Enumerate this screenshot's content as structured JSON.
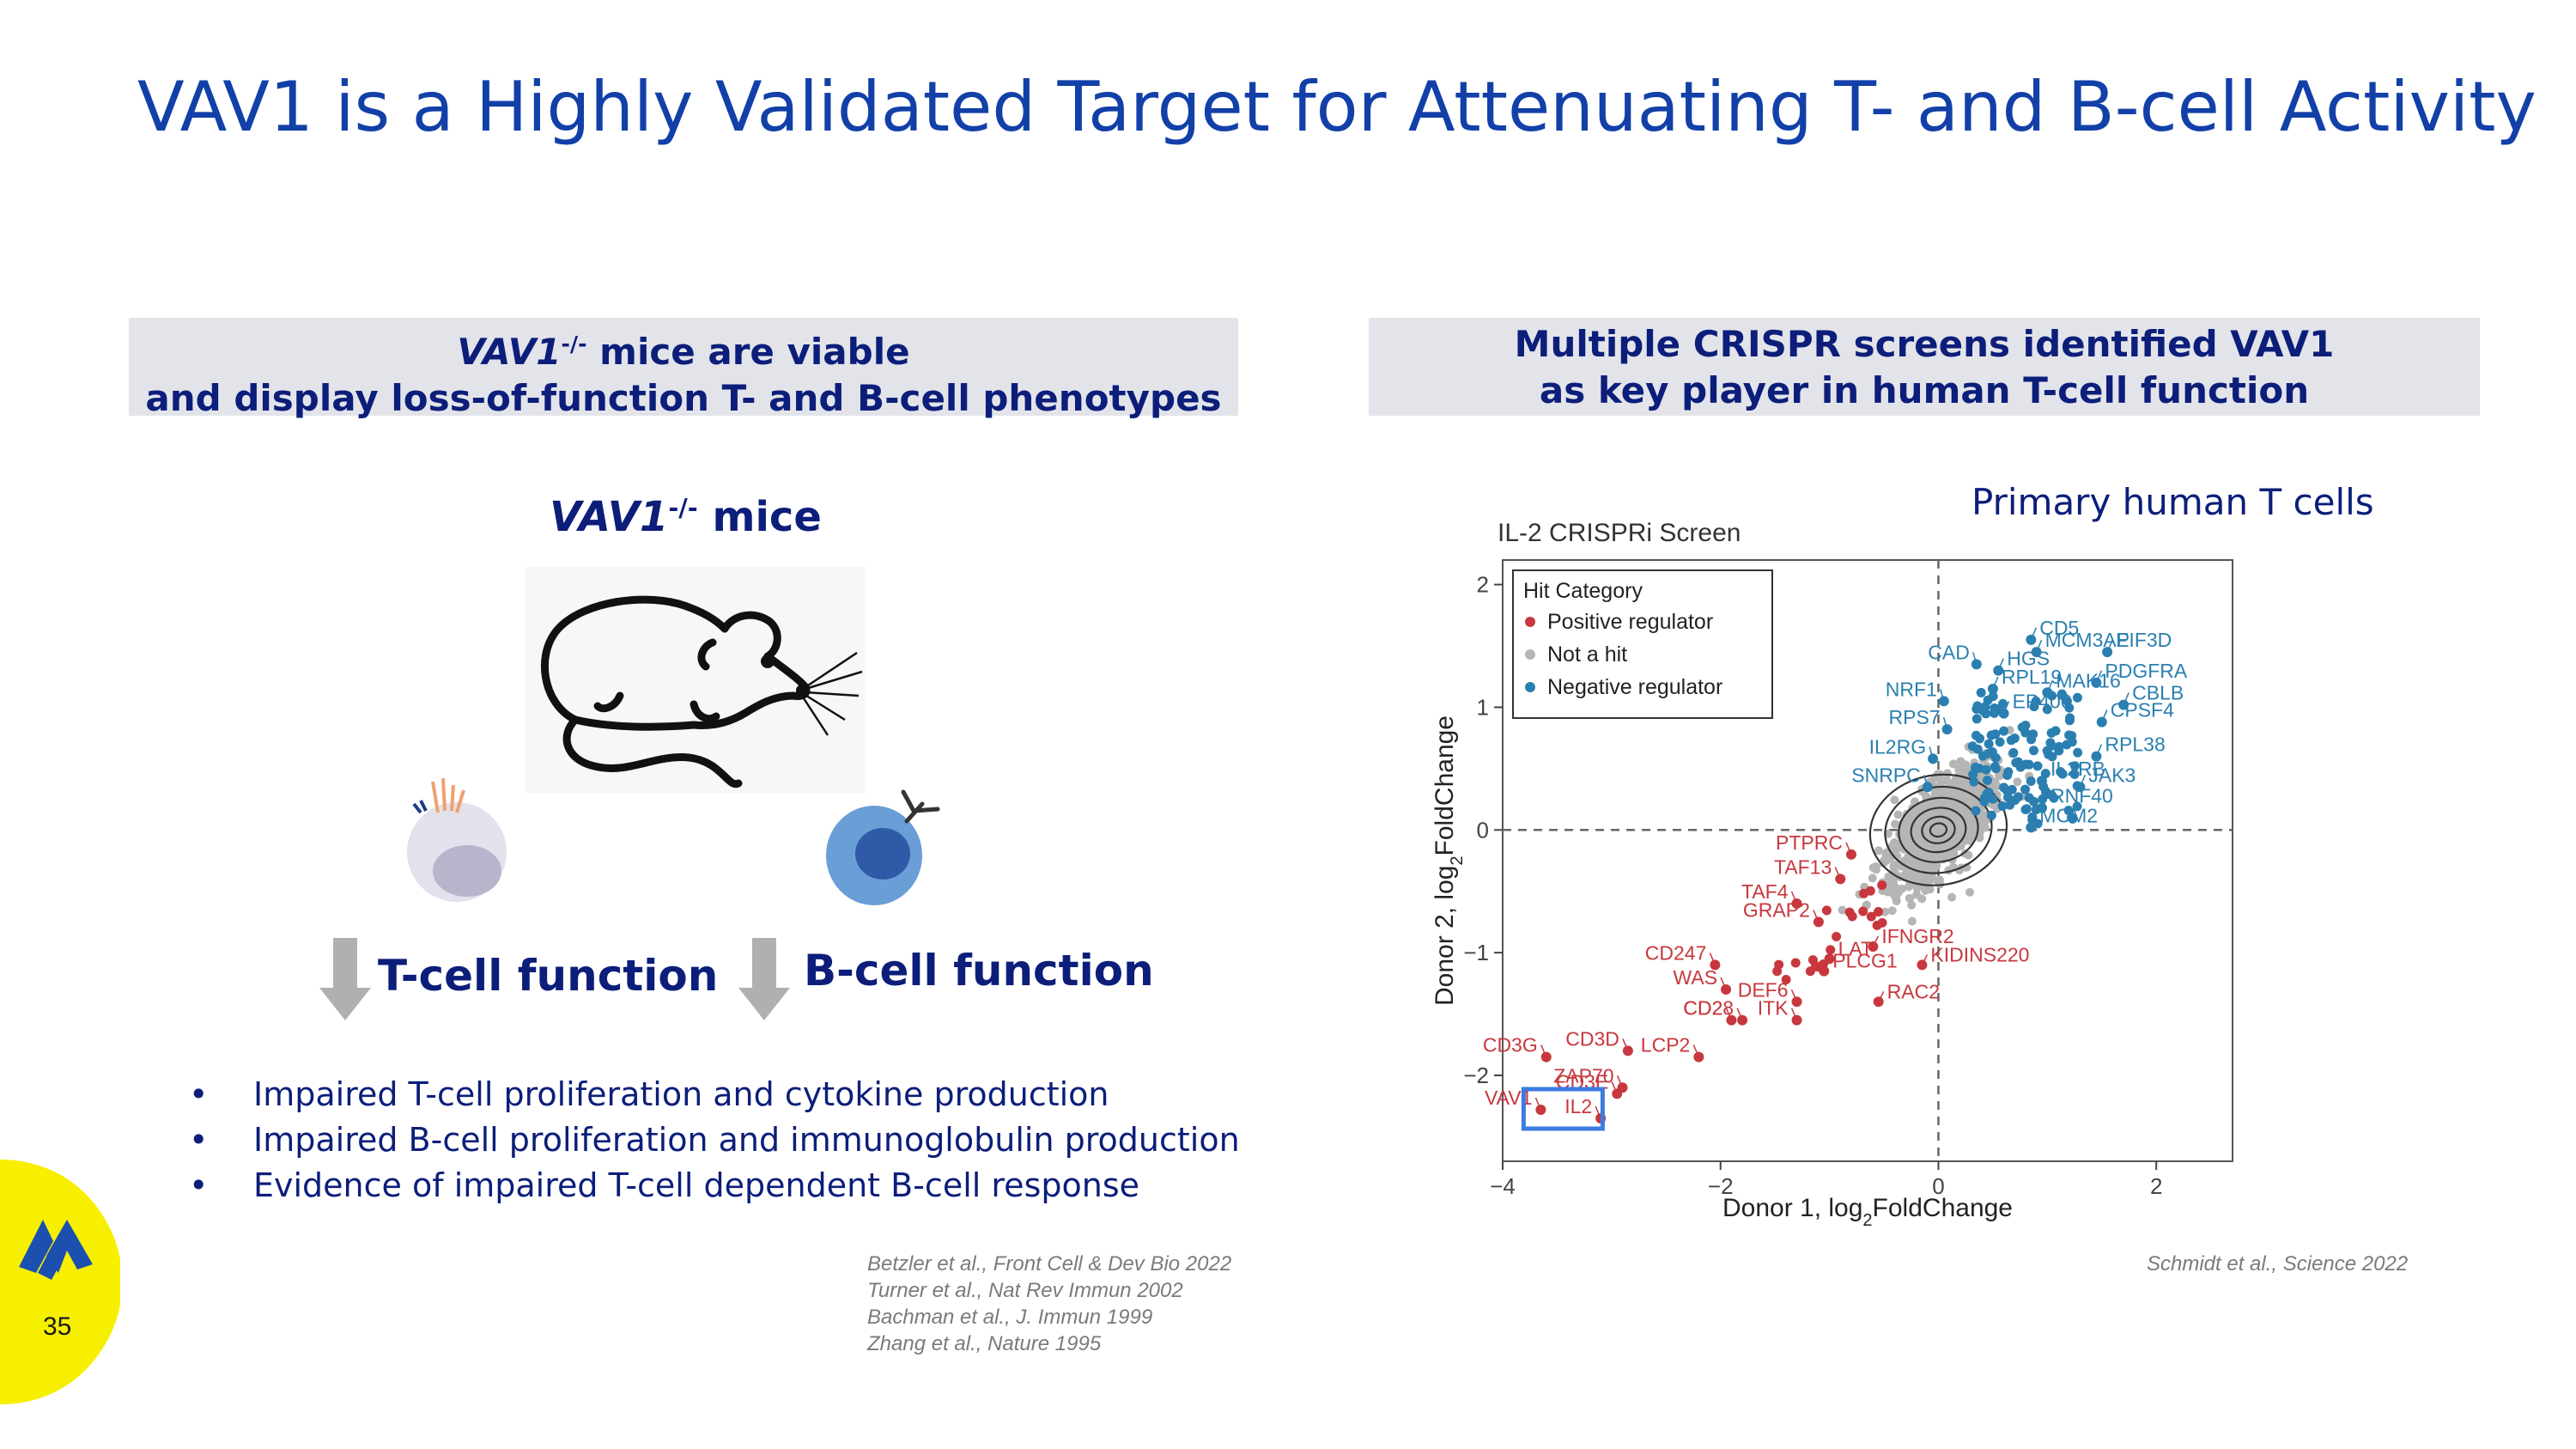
{
  "slide": {
    "title": "VAV1 is a Highly Validated Target for Attenuating T- and B-cell Activity",
    "page_number": "35",
    "colors": {
      "brand_blue": "#1240a8",
      "navy": "#0c1e7a",
      "band_gray": "#e2e4ea",
      "logo_yellow": "#f7ef00"
    }
  },
  "left": {
    "header_gene": "VAV1",
    "header_sup": "-/-",
    "header_line1_rest": " mice are viable",
    "header_line2": "and display loss-of-function T- and B-cell phenotypes",
    "mice_gene": "VAV1",
    "mice_sup": "-/-",
    "mice_rest": " mice",
    "t_cell_label": "T-cell function",
    "b_cell_label": "B-cell function",
    "bullets": [
      "Impaired T-cell proliferation and cytokine production",
      "Impaired B-cell proliferation and immunoglobulin production",
      "Evidence of impaired T-cell dependent B-cell response"
    ],
    "references": [
      "Betzler et al., Front Cell & Dev Bio 2022",
      "Turner et al., Nat Rev Immun 2002",
      "Bachman et al., J. Immun 1999",
      "Zhang et al., Nature 1995"
    ],
    "icons": [
      "mouse-icon",
      "t-cell-icon",
      "b-cell-icon",
      "down-arrow-icon"
    ]
  },
  "right": {
    "header_line1": "Multiple CRISPR screens identified VAV1",
    "header_line2": "as key player in human T-cell function",
    "subtitle": "Primary human T cells",
    "reference": "Schmidt et al., Science 2022"
  },
  "chart_data": {
    "type": "scatter",
    "title": "IL-2 CRISPRi Screen",
    "xlabel": "Donor 1, log2FoldChange",
    "ylabel": "Donor 2, log2FoldChange",
    "xlim": [
      -4,
      2.7
    ],
    "ylim": [
      -2.7,
      2.2
    ],
    "xticks": [
      -4,
      -2,
      0,
      2
    ],
    "xtick_labels": [
      "−4",
      "−2",
      "0",
      "2"
    ],
    "yticks": [
      -2,
      -1,
      0,
      1,
      2
    ],
    "ytick_labels": [
      "−2",
      "−1",
      "0",
      "1",
      "2"
    ],
    "grid": false,
    "reference_lines": {
      "x": 0,
      "y": 0,
      "style": "dashed"
    },
    "legend": {
      "title": "Hit Category",
      "position": "top-left",
      "entries": [
        {
          "name": "Positive regulator",
          "color": "#c8373d"
        },
        {
          "name": "Not a hit",
          "color": "#b5b5b5"
        },
        {
          "name": "Negative regulator",
          "color": "#2a7fb0"
        }
      ]
    },
    "series": [
      {
        "name": "Negative regulator",
        "color": "#2a7fb0",
        "points": [
          {
            "label": "CD5",
            "x": 0.85,
            "y": 1.55
          },
          {
            "label": "MCM3AP",
            "x": 0.9,
            "y": 1.45
          },
          {
            "label": "EIF3D",
            "x": 1.55,
            "y": 1.45
          },
          {
            "label": "CAD",
            "x": 0.35,
            "y": 1.35
          },
          {
            "label": "HGS",
            "x": 0.55,
            "y": 1.3
          },
          {
            "label": "PDGFRA",
            "x": 1.45,
            "y": 1.2
          },
          {
            "label": "RPL19",
            "x": 0.5,
            "y": 1.15
          },
          {
            "label": "MAK16",
            "x": 1.0,
            "y": 1.12
          },
          {
            "label": "NRF1",
            "x": 0.05,
            "y": 1.05
          },
          {
            "label": "CBLB",
            "x": 1.7,
            "y": 1.02
          },
          {
            "label": "EP400",
            "x": 0.6,
            "y": 0.95
          },
          {
            "label": "CPSF4",
            "x": 1.5,
            "y": 0.88
          },
          {
            "label": "RPS7",
            "x": 0.08,
            "y": 0.82
          },
          {
            "label": "RPL38",
            "x": 1.45,
            "y": 0.6
          },
          {
            "label": "IL2RG",
            "x": -0.05,
            "y": 0.58
          },
          {
            "label": "IL2RB",
            "x": 0.95,
            "y": 0.4
          },
          {
            "label": "JAK3",
            "x": 1.3,
            "y": 0.35
          },
          {
            "label": "SNRPC",
            "x": -0.1,
            "y": 0.35
          },
          {
            "label": "RNF40",
            "x": 0.95,
            "y": 0.18
          },
          {
            "label": "MCM2",
            "x": 0.85,
            "y": 0.02
          }
        ]
      },
      {
        "name": "Positive regulator",
        "color": "#c8373d",
        "points": [
          {
            "label": "PTPRC",
            "x": -0.8,
            "y": -0.2
          },
          {
            "label": "TAF13",
            "x": -0.9,
            "y": -0.4
          },
          {
            "label": "TAF4",
            "x": -1.3,
            "y": -0.6
          },
          {
            "label": "GRAP2",
            "x": -1.1,
            "y": -0.75
          },
          {
            "label": "IFNGR2",
            "x": -0.6,
            "y": -0.95
          },
          {
            "label": "LAT",
            "x": -1.0,
            "y": -1.05
          },
          {
            "label": "CD247",
            "x": -2.05,
            "y": -1.1
          },
          {
            "label": "PLCG1",
            "x": -1.05,
            "y": -1.15
          },
          {
            "label": "KIDINS220",
            "x": -0.15,
            "y": -1.1
          },
          {
            "label": "WAS",
            "x": -1.95,
            "y": -1.3
          },
          {
            "label": "DEF6",
            "x": -1.3,
            "y": -1.4
          },
          {
            "label": "RAC2",
            "x": -0.55,
            "y": -1.4
          },
          {
            "label": "CD2",
            "x": -1.9,
            "y": -1.55
          },
          {
            "label": "CD28",
            "x": -1.8,
            "y": -1.55
          },
          {
            "label": "ITK",
            "x": -1.3,
            "y": -1.55
          },
          {
            "label": "CD3D",
            "x": -2.85,
            "y": -1.8
          },
          {
            "label": "CD3G",
            "x": -3.6,
            "y": -1.85
          },
          {
            "label": "LCP2",
            "x": -2.2,
            "y": -1.85
          },
          {
            "label": "ZAP70",
            "x": -2.9,
            "y": -2.1
          },
          {
            "label": "CD3E",
            "x": -2.95,
            "y": -2.15
          },
          {
            "label": "IL2",
            "x": -3.1,
            "y": -2.35
          },
          {
            "label": "VAV1",
            "x": -3.65,
            "y": -2.28
          }
        ]
      },
      {
        "name": "Not a hit",
        "color": "#b5b5b5",
        "distribution": "dense cloud centered near (0, 0), roughly -0.7 to 0.9 on both axes"
      }
    ],
    "highlighted_point": "VAV1"
  }
}
